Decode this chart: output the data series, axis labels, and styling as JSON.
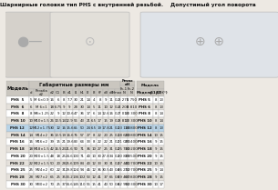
{
  "title": "Шарнирные головки тип PHS с внутренней резьбой.",
  "subtitle_right": "Допустимый угол поворота",
  "bg_color": "#ede9e3",
  "main_table_header": "Габаритные размеры мм",
  "main_table_rows": [
    [
      "PHS  5",
      "5",
      "M 6×0.9",
      "16",
      "6",
      "8",
      "7.7",
      "30",
      "21",
      "14",
      "4",
      "8",
      "9",
      "11",
      "0.2",
      "3 270",
      "5 750"
    ],
    [
      "PHS  6",
      "6",
      "M 6×1",
      "18",
      "6.75",
      "9",
      "9",
      "28",
      "30",
      "14",
      "5",
      "11",
      "10",
      "12",
      "0.2",
      "4 200",
      "8 810"
    ],
    [
      "PHS  8",
      "8",
      "M8×1.25",
      "22",
      "9",
      "12",
      "10.6",
      "47",
      "36",
      "17",
      "6",
      "14",
      "12.6",
      "16",
      "0.2",
      "7 010",
      "10 300"
    ],
    [
      "PHS 10",
      "10",
      "M10×1.5",
      "26",
      "10.5",
      "14",
      "12.9",
      "56",
      "43",
      "21",
      "6.5",
      "17",
      "15",
      "19",
      "0.2",
      "8 810",
      "13 300"
    ],
    [
      "PHS 12",
      "12",
      "M12×1.75",
      "30",
      "12",
      "16",
      "15.6",
      "65",
      "50",
      "24",
      "6.5",
      "19",
      "17.8",
      "21",
      "0.2",
      "13 100",
      "18 800"
    ],
    [
      "PHS 14",
      "14",
      "M14×2",
      "36",
      "13.5",
      "19",
      "16.6",
      "76",
      "57",
      "27",
      "8",
      "22",
      "20",
      "25",
      "0.2",
      "18 600",
      "20 800"
    ],
    [
      "PHS 16",
      "16",
      "M16×2",
      "39",
      "15",
      "21",
      "19.6",
      "83",
      "64",
      "33",
      "8",
      "22",
      "22",
      "21",
      "0.2",
      "21 000",
      "25 400"
    ],
    [
      "PHS 18",
      "18",
      "M18×1.5",
      "42",
      "16.5",
      "23",
      "21.6",
      "90",
      "71",
      "36",
      "10",
      "27",
      "25",
      "31",
      "0.2",
      "25 700",
      "30 200"
    ],
    [
      "PHS 20",
      "20",
      "M20×1.5",
      "48",
      "18",
      "25",
      "24.6",
      "100",
      "71",
      "40",
      "10",
      "30",
      "27.8",
      "34",
      "0.2",
      "30 800",
      "39 500"
    ],
    [
      "PHS 22",
      "22",
      "M22×1.5",
      "50",
      "20",
      "28",
      "25.6",
      "109",
      "84",
      "43",
      "12",
      "33",
      "30",
      "31",
      "0.2",
      "37 400",
      "41 700"
    ],
    [
      "PHS 25",
      "25",
      "M24×2",
      "60",
      "22",
      "31",
      "29.8",
      "124",
      "94",
      "46",
      "12",
      "36",
      "30.5",
      "43",
      "0.8",
      "46 200",
      "72 700"
    ],
    [
      "PHS 28",
      "28",
      "M27×2",
      "66",
      "25",
      "35",
      "33.2",
      "136",
      "102",
      "53",
      "12",
      "41",
      "37",
      "66",
      "0.8",
      "59 400",
      "67 800"
    ],
    [
      "PHS 30",
      "30",
      "M30×2",
      "70",
      "25",
      "37",
      "34.6",
      "145",
      "110",
      "56",
      "15",
      "41",
      "40",
      "50",
      "0.8",
      "62 900",
      "92 300"
    ]
  ],
  "right_table_rows": [
    [
      "PHS 5",
      "8",
      "13"
    ],
    [
      "PHS 6",
      "8",
      "13"
    ],
    [
      "PHS 8",
      "8",
      "14"
    ],
    [
      "PHS 10",
      "8",
      "14"
    ],
    [
      "PHS 12",
      "8",
      "13"
    ],
    [
      "PHS 14",
      "10",
      "15"
    ],
    [
      "PHS 16",
      "9",
      "15"
    ],
    [
      "PHS 18",
      "9",
      "15"
    ],
    [
      "PHS 20",
      "9",
      "15"
    ],
    [
      "PHS 22",
      "10",
      "15"
    ],
    [
      "PHS 25",
      "9",
      "14"
    ],
    [
      "PHS 28",
      "9",
      "15"
    ],
    [
      "PHS 30",
      "10",
      "17"
    ]
  ],
  "highlight_row_index": 4,
  "table_bg_even": "#ffffff",
  "table_bg_odd": "#e5e1db",
  "header_bg": "#cac6bf",
  "highlight_bg": "#b8d4e8",
  "border_color": "#aaaaaa",
  "text_color": "#111111",
  "top_area_color": "#dedad4",
  "right_box_color": "#dfe3e8"
}
